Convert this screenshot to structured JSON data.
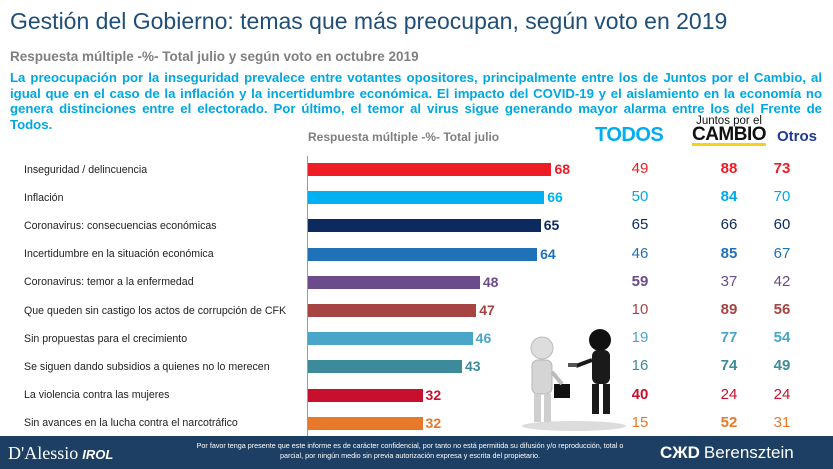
{
  "header": {
    "title": "Gestión del Gobierno: temas que más preocupan, según voto en 2019",
    "subtitle": "Respuesta múltiple -%- Total julio y según voto en octubre 2019",
    "description": "La preocupación por la inseguridad prevalece entre votantes opositores, principalmente entre los de Juntos por el Cambio, al igual que en el caso de la inflación y la incertidumbre económica. El impacto del COVID-19 y el aislamiento en la economía no genera distinciones entre el electorado. Por último, el temor al virus sigue generando mayor alarma entre los del Frente de Todos."
  },
  "chart_data": {
    "type": "bar",
    "orientation": "horizontal",
    "subtitle": "Respuesta múltiple -%- Total julio",
    "categories": [
      "Inseguridad / delincuencia",
      "Inflación",
      "Coronavirus: consecuencias económicas",
      "Incertidumbre en la situación económica",
      "Coronavirus: temor a la enfermedad",
      "Que queden sin castigo los actos de corrupción de CFK",
      "Sin propuestas para el crecimiento",
      "Se siguen dando subsidios a quienes no lo merecen",
      "La violencia contra las mujeres",
      "Sin avances en la lucha contra el narcotráfico"
    ],
    "values": [
      68,
      66,
      65,
      64,
      48,
      47,
      46,
      43,
      32,
      32
    ],
    "bar_colors": [
      "#ee1c24",
      "#00b0f0",
      "#0d2a5e",
      "#1f71b8",
      "#6b4b8a",
      "#a64444",
      "#4aa6c9",
      "#3d8b9a",
      "#c8102e",
      "#e8782a"
    ],
    "value_colors": [
      "#ee1c24",
      "#00b0f0",
      "#0d2a5e",
      "#1f71b8",
      "#6b4b8a",
      "#a64444",
      "#4aa6c9",
      "#3d8b9a",
      "#c8102e",
      "#e8782a"
    ],
    "xlim": [
      0,
      100
    ],
    "grid": false,
    "legend": "none"
  },
  "vote_table": {
    "columns": [
      {
        "key": "todos",
        "label": "TODOS",
        "color": "#00aeef"
      },
      {
        "key": "jxc",
        "label_top": "Juntos por el",
        "label_bottom": "CAMBIO",
        "color": "#111111"
      },
      {
        "key": "otros",
        "label": "Otros",
        "color": "#1f3a93"
      }
    ],
    "rows": [
      {
        "todos": "49",
        "jxc": "88",
        "otros": "73",
        "color": "#ee1c24",
        "bold": [
          false,
          true,
          true
        ]
      },
      {
        "todos": "50",
        "jxc": "84",
        "otros": "70",
        "color": "#00a9e6",
        "bold": [
          false,
          true,
          false
        ]
      },
      {
        "todos": "65",
        "jxc": "66",
        "otros": "60",
        "color": "#0d2a5e",
        "bold": [
          false,
          false,
          false
        ]
      },
      {
        "todos": "46",
        "jxc": "85",
        "otros": "67",
        "color": "#1f71b8",
        "bold": [
          false,
          true,
          false
        ]
      },
      {
        "todos": "59",
        "jxc": "37",
        "otros": "42",
        "color": "#6b4b8a",
        "bold": [
          true,
          false,
          false
        ]
      },
      {
        "todos": "10",
        "jxc": "89",
        "otros": "56",
        "color": "#a64444",
        "bold": [
          false,
          true,
          true
        ]
      },
      {
        "todos": "19",
        "jxc": "77",
        "otros": "54",
        "color": "#4aa6c9",
        "bold": [
          false,
          true,
          true
        ]
      },
      {
        "todos": "16",
        "jxc": "74",
        "otros": "49",
        "color": "#3d8b9a",
        "bold": [
          false,
          true,
          true
        ]
      },
      {
        "todos": "40",
        "jxc": "24",
        "otros": "24",
        "color": "#c8102e",
        "bold": [
          true,
          false,
          false
        ]
      },
      {
        "todos": "15",
        "jxc": "52",
        "otros": "31",
        "color": "#e8782a",
        "bold": [
          false,
          true,
          false
        ]
      }
    ]
  },
  "footer": {
    "logo": "D'Alessio",
    "logo_suffix": "IROL",
    "note": "Por favor tenga presente que este informe es de carácter confidencial, por tanto no está permitida su difusión y/o reproducción, total o parcial, por ningún medio sin previa autorización expresa y escrita del propietario.",
    "brand": "Berensztein",
    "brand_mark": "CЖD"
  }
}
